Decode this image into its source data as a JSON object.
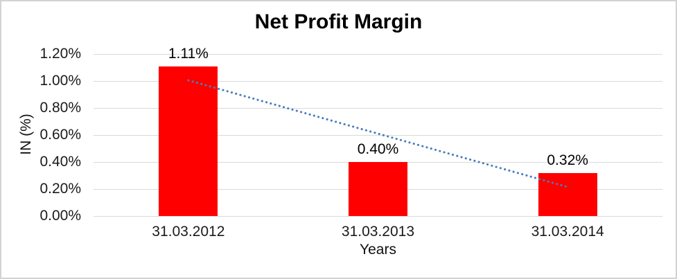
{
  "chart_data": {
    "type": "bar",
    "title": "Net Profit Margin",
    "xlabel": "Years",
    "ylabel": "IN (%)",
    "categories": [
      "31.03.2012",
      "31.03.2013",
      "31.03.2014"
    ],
    "values": [
      1.11,
      0.4,
      0.32
    ],
    "data_labels": [
      "1.11%",
      "0.40%",
      "0.32%"
    ],
    "ylim": [
      0,
      1.2
    ],
    "ytick_values": [
      0,
      0.2,
      0.4,
      0.6,
      0.8,
      1.0,
      1.2
    ],
    "ytick_labels": [
      "0.00%",
      "0.20%",
      "0.40%",
      "0.60%",
      "0.80%",
      "1.00%",
      "1.20%"
    ],
    "grid": true,
    "legend": "none",
    "trendline": {
      "style": "dotted",
      "start_value": 1.005,
      "end_value": 0.215
    },
    "colors": {
      "bar": "#ff0000",
      "gridline": "#d9d9d9",
      "axis_text": "#1a1a1a",
      "title_text": "#000000",
      "trendline": "#4a7ebb",
      "frame_border": "#d2d2d2"
    }
  }
}
